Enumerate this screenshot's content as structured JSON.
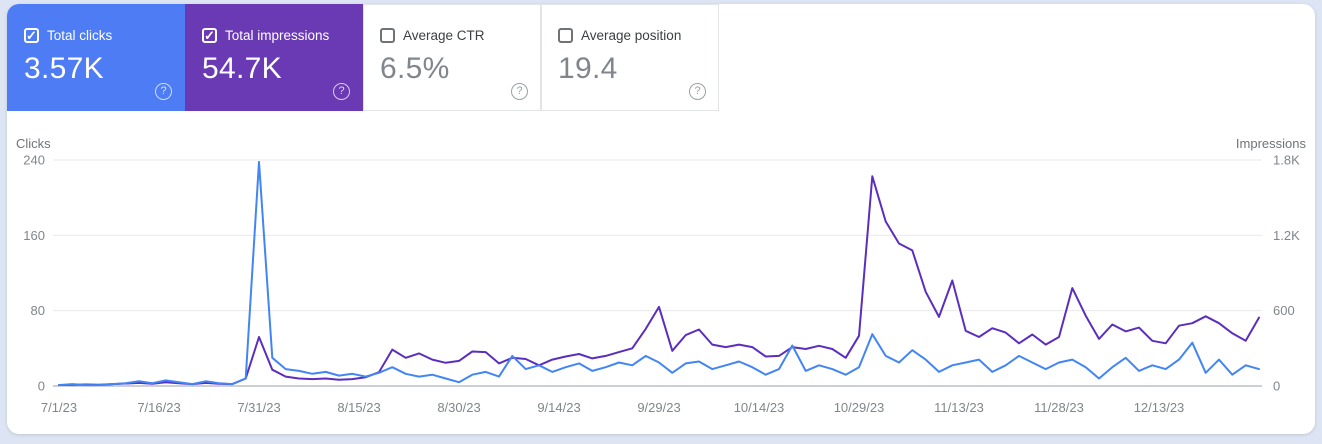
{
  "page_bg": "#dde4f3",
  "metrics": {
    "help_glyph": "?",
    "cards": [
      {
        "id": "total-clicks",
        "label": "Total clicks",
        "value": "3.57K",
        "checked": true,
        "bg": "#4d7cf5"
      },
      {
        "id": "total-impressions",
        "label": "Total impressions",
        "value": "54.7K",
        "checked": true,
        "bg": "#6a39b4"
      },
      {
        "id": "average-ctr",
        "label": "Average CTR",
        "value": "6.5%",
        "checked": false,
        "bg": ""
      },
      {
        "id": "average-position",
        "label": "Average position",
        "value": "19.4",
        "checked": false,
        "bg": ""
      }
    ]
  },
  "chart_data": {
    "type": "line",
    "title": "",
    "grid": true,
    "legend_position": "none",
    "x_total_days": 180,
    "x_tick_days": [
      0,
      15,
      30,
      45,
      60,
      75,
      90,
      105,
      120,
      135,
      150,
      165
    ],
    "x_tick_labels": [
      "7/1/23",
      "7/16/23",
      "7/31/23",
      "8/15/23",
      "8/30/23",
      "9/14/23",
      "9/29/23",
      "10/14/23",
      "10/29/23",
      "11/13/23",
      "11/28/23",
      "12/13/23"
    ],
    "left_axis": {
      "title": "Clicks",
      "max": 240,
      "ticks": [
        0,
        80,
        160,
        240
      ],
      "tick_labels": [
        "0",
        "80",
        "160",
        "240"
      ]
    },
    "right_axis": {
      "title": "Impressions",
      "max": 1800,
      "ticks": [
        0,
        600,
        1200,
        1800
      ],
      "tick_labels": [
        "0",
        "600",
        "1.2K",
        "1.8K"
      ]
    },
    "dates": [
      "7/1/23",
      "7/3/23",
      "7/5/23",
      "7/7/23",
      "7/9/23",
      "7/11/23",
      "7/13/23",
      "7/15/23",
      "7/17/23",
      "7/19/23",
      "7/21/23",
      "7/23/23",
      "7/25/23",
      "7/27/23",
      "7/29/23",
      "7/31/23",
      "8/2/23",
      "8/4/23",
      "8/6/23",
      "8/8/23",
      "8/10/23",
      "8/12/23",
      "8/14/23",
      "8/16/23",
      "8/18/23",
      "8/20/23",
      "8/22/23",
      "8/24/23",
      "8/26/23",
      "8/28/23",
      "8/30/23",
      "9/1/23",
      "9/3/23",
      "9/5/23",
      "9/7/23",
      "9/9/23",
      "9/11/23",
      "9/13/23",
      "9/15/23",
      "9/17/23",
      "9/19/23",
      "9/21/23",
      "9/23/23",
      "9/25/23",
      "9/27/23",
      "9/29/23",
      "10/1/23",
      "10/3/23",
      "10/5/23",
      "10/7/23",
      "10/9/23",
      "10/11/23",
      "10/13/23",
      "10/15/23",
      "10/17/23",
      "10/19/23",
      "10/21/23",
      "10/23/23",
      "10/25/23",
      "10/27/23",
      "10/29/23",
      "10/31/23",
      "11/2/23",
      "11/4/23",
      "11/6/23",
      "11/8/23",
      "11/10/23",
      "11/12/23",
      "11/14/23",
      "11/16/23",
      "11/18/23",
      "11/20/23",
      "11/22/23",
      "11/24/23",
      "11/26/23",
      "11/28/23",
      "11/30/23",
      "12/2/23",
      "12/4/23",
      "12/6/23",
      "12/8/23",
      "12/10/23",
      "12/12/23",
      "12/14/23",
      "12/16/23",
      "12/18/23",
      "12/20/23",
      "12/22/23",
      "12/24/23",
      "12/26/23",
      "12/28/23"
    ],
    "series": [
      {
        "name": "Clicks",
        "axis": "left",
        "color": "#4285f4",
        "values": [
          1,
          2,
          1,
          1,
          2,
          3,
          5,
          3,
          6,
          4,
          2,
          5,
          3,
          2,
          8,
          238,
          30,
          18,
          16,
          13,
          15,
          11,
          13,
          10,
          14,
          20,
          13,
          10,
          12,
          8,
          4,
          12,
          15,
          10,
          32,
          18,
          22,
          15,
          20,
          24,
          16,
          20,
          25,
          22,
          32,
          25,
          14,
          24,
          26,
          18,
          22,
          26,
          20,
          12,
          18,
          43,
          16,
          22,
          18,
          12,
          20,
          55,
          32,
          25,
          38,
          28,
          15,
          22,
          25,
          28,
          15,
          22,
          32,
          25,
          18,
          25,
          28,
          20,
          8,
          20,
          30,
          16,
          22,
          18,
          28,
          46,
          14,
          28,
          12,
          22,
          18
        ]
      },
      {
        "name": "Impressions",
        "axis": "right",
        "color": "#5b2ebe",
        "values": [
          8,
          10,
          12,
          10,
          15,
          20,
          25,
          18,
          30,
          22,
          15,
          25,
          18,
          15,
          60,
          390,
          130,
          75,
          60,
          55,
          60,
          50,
          55,
          70,
          110,
          290,
          225,
          260,
          210,
          185,
          200,
          275,
          270,
          180,
          225,
          215,
          165,
          210,
          235,
          255,
          220,
          240,
          270,
          300,
          455,
          630,
          280,
          405,
          450,
          330,
          310,
          330,
          310,
          235,
          240,
          310,
          295,
          320,
          295,
          225,
          400,
          1670,
          1310,
          1135,
          1080,
          750,
          550,
          840,
          440,
          390,
          460,
          425,
          340,
          410,
          330,
          390,
          780,
          560,
          375,
          490,
          435,
          465,
          360,
          340,
          480,
          500,
          555,
          500,
          420,
          360,
          545
        ]
      }
    ]
  }
}
